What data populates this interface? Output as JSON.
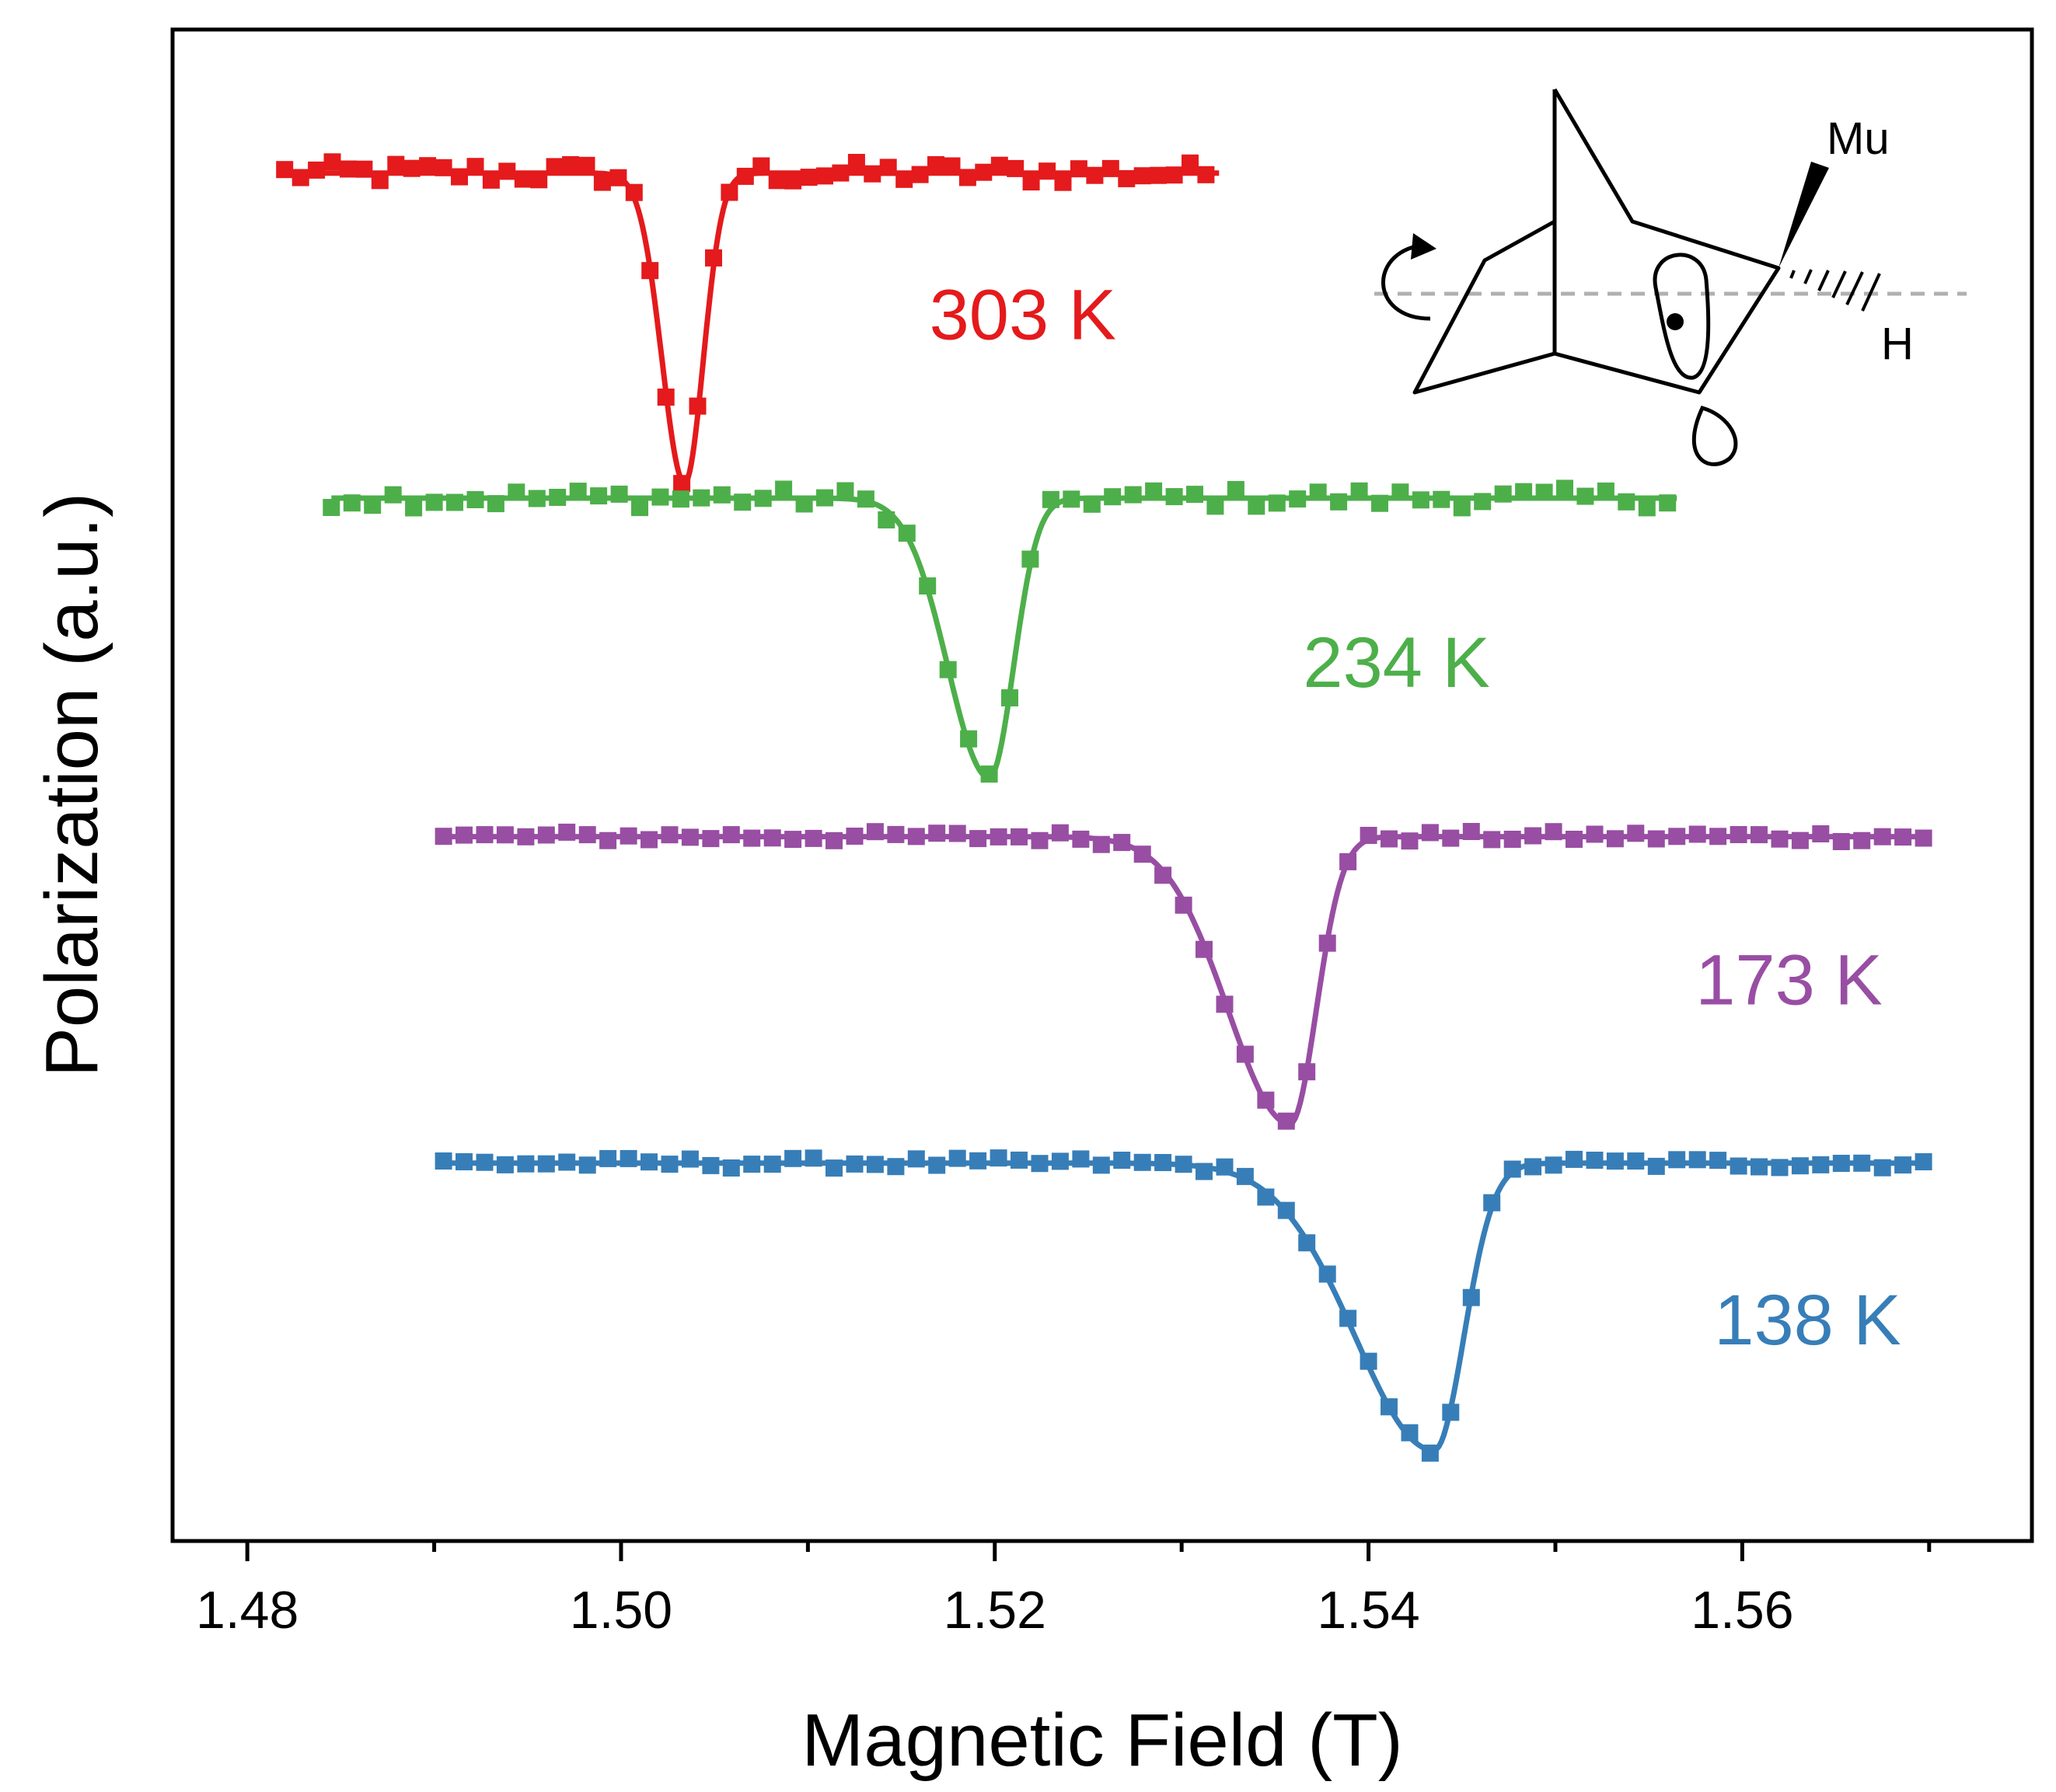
{
  "chart_data": {
    "type": "line",
    "xlabel": "Magnetic Field (T)",
    "ylabel": "Polarization (a.u.)",
    "xlim": [
      1.476,
      1.5755
    ],
    "ylim": [
      0,
      1
    ],
    "xticks": [
      {
        "value": 1.48,
        "label": "1.48"
      },
      {
        "value": 1.5,
        "label": "1.50"
      },
      {
        "value": 1.52,
        "label": "1.52"
      },
      {
        "value": 1.54,
        "label": "1.54"
      },
      {
        "value": 1.56,
        "label": "1.56"
      }
    ],
    "x_minor_ticks": [
      1.49,
      1.51,
      1.53,
      1.55,
      1.57
    ],
    "y_ticks_labeled": false,
    "series": [
      {
        "name": "303 K",
        "label": "303 K",
        "color": "#e41a1c",
        "x_start": 1.482,
        "x_end": 1.532,
        "step": 0.00085,
        "baseline": 0.905,
        "drop": 0.205,
        "center": 1.5034,
        "sigma_left": 0.0012,
        "sigma_right": 0.001,
        "noise": 0.0075,
        "label_x": 1.5215,
        "label_y": 0.795
      },
      {
        "name": "234 K",
        "label": "234 K",
        "color": "#4daf4a",
        "x_start": 1.4845,
        "x_end": 1.5565,
        "step": 0.0011,
        "baseline": 0.69,
        "drop": 0.185,
        "center": 1.5197,
        "sigma_left": 0.0022,
        "sigma_right": 0.0013,
        "noise": 0.0065,
        "label_x": 1.5415,
        "label_y": 0.565
      },
      {
        "name": "173 K",
        "label": "173 K",
        "color": "#984ea3",
        "x_start": 1.4905,
        "x_end": 1.57,
        "step": 0.0011,
        "baseline": 0.466,
        "drop": 0.19,
        "center": 1.5358,
        "sigma_left": 0.0033,
        "sigma_right": 0.0014,
        "noise": 0.0035,
        "label_x": 1.5625,
        "label_y": 0.355
      },
      {
        "name": "138 K",
        "label": "138 K",
        "color": "#377eb8",
        "x_start": 1.4905,
        "x_end": 1.57,
        "step": 0.0011,
        "baseline": 0.25,
        "drop": 0.19,
        "center": 1.5435,
        "sigma_left": 0.0042,
        "sigma_right": 0.0016,
        "noise": 0.0035,
        "label_x": 1.5635,
        "label_y": 0.13
      }
    ]
  },
  "inset": {
    "labels": {
      "mu": "Mu",
      "h": "H"
    }
  }
}
